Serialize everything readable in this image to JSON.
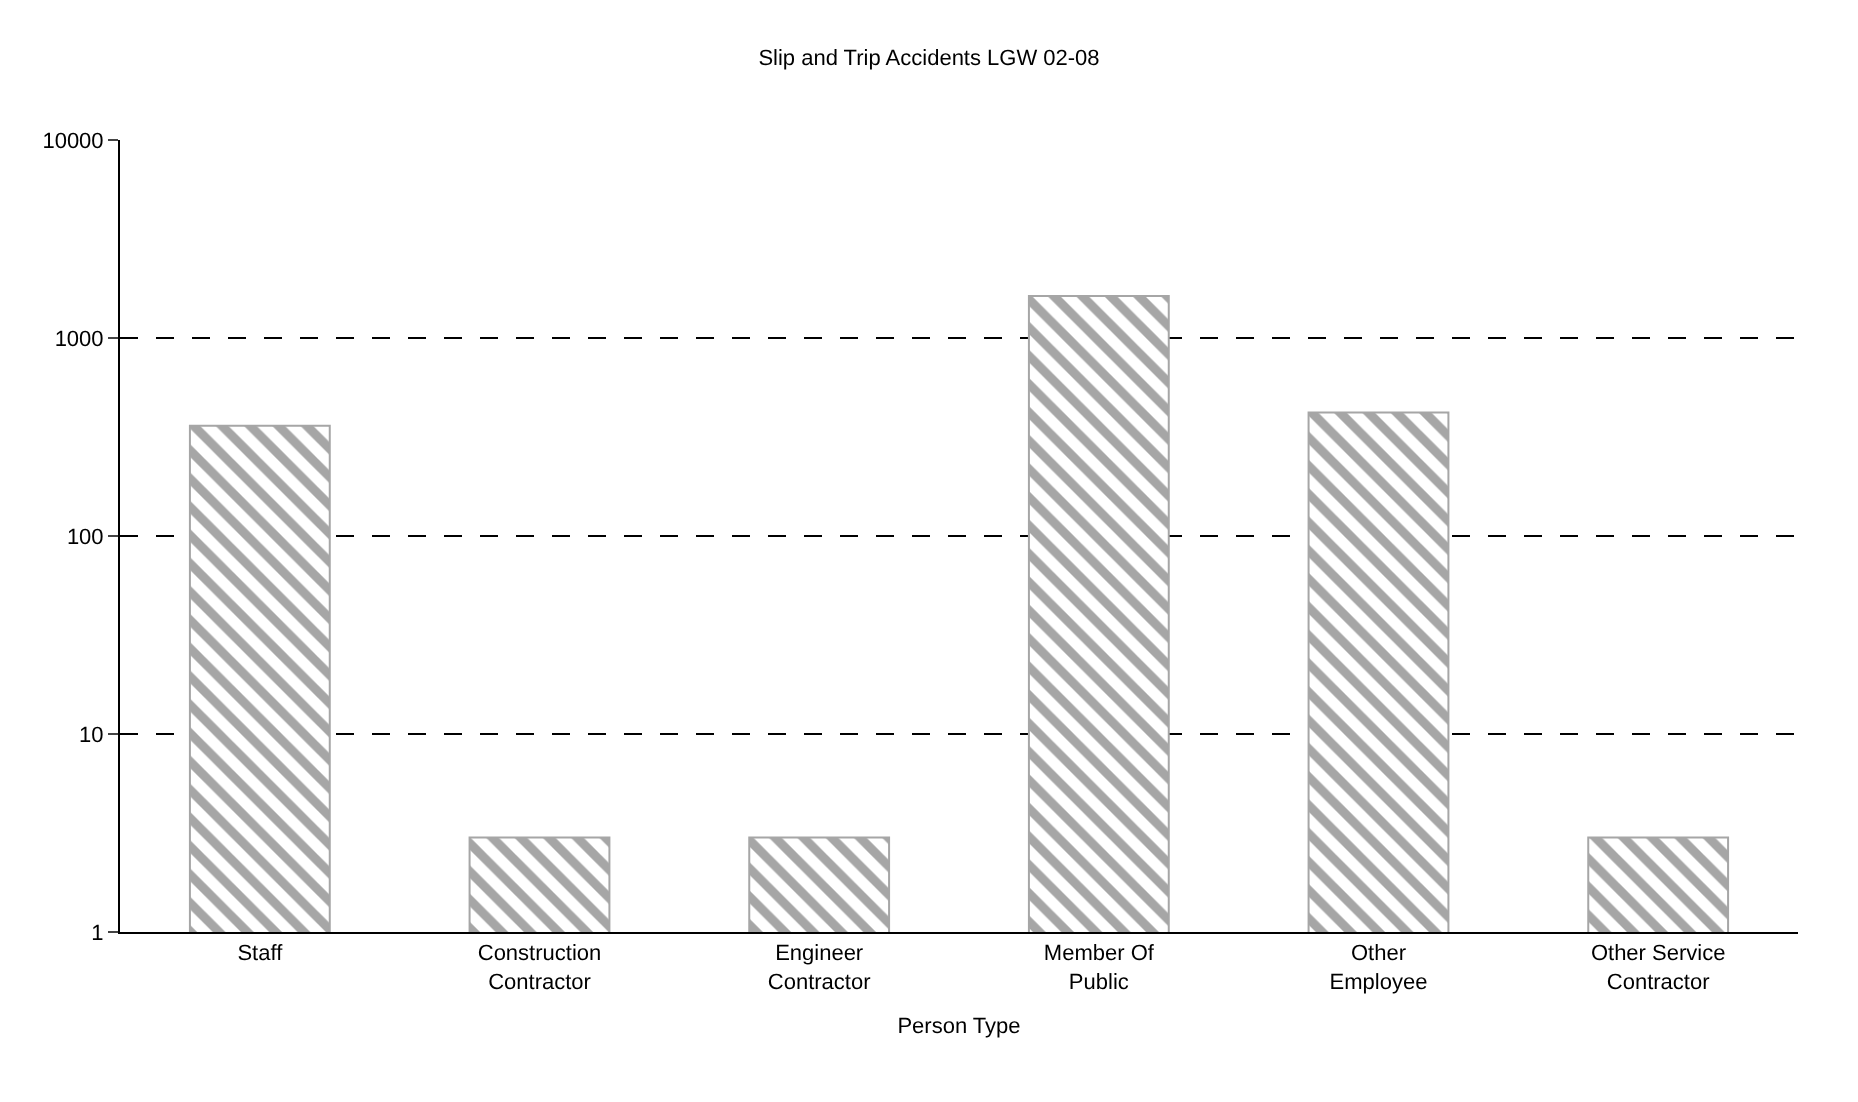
{
  "chart_data": {
    "type": "bar",
    "title": "Slip and Trip Accidents LGW 02-08",
    "xlabel": "Person Type",
    "categories": [
      "Staff",
      "Construction Contractor",
      "Engineer Contractor",
      "Member Of Public",
      "Other Employee",
      "Other Service Contractor"
    ],
    "values": [
      360,
      3,
      3,
      1630,
      420,
      3
    ],
    "color": "#a6a6a6",
    "log": true,
    "ylim": [
      1,
      10000
    ],
    "yticks": [
      1,
      10,
      100,
      1000,
      10000
    ],
    "grid": "y"
  }
}
